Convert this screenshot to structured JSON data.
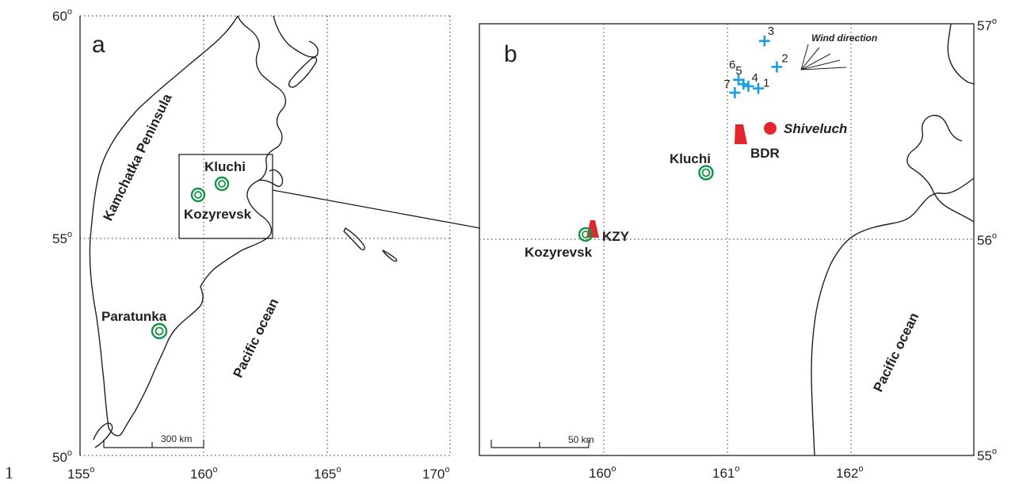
{
  "corner_label": "1",
  "panel_a": {
    "letter": "a",
    "x_ticks": [
      {
        "value": "155",
        "lon": 155
      },
      {
        "value": "160",
        "lon": 160
      },
      {
        "value": "165",
        "lon": 165
      },
      {
        "value": "170",
        "lon": 170
      }
    ],
    "y_ticks": [
      {
        "value": "60",
        "lat": 60
      },
      {
        "value": "55",
        "lat": 55
      },
      {
        "value": "50",
        "lat": 50
      }
    ],
    "region_labels": {
      "peninsula": "Kamchatka Peninsula",
      "ocean": "Pacific ocean"
    },
    "stations": [
      {
        "name": "Kluchi",
        "lon": 160.8,
        "lat": 56.3
      },
      {
        "name": "Kozyrevsk",
        "lon": 159.9,
        "lat": 56.1
      },
      {
        "name": "Paratunka",
        "lon": 158.2,
        "lat": 53.0
      }
    ],
    "scale_bar": {
      "label": "300 km"
    }
  },
  "panel_b": {
    "letter": "b",
    "x_ticks": [
      {
        "value": "160",
        "lon": 160
      },
      {
        "value": "161",
        "lon": 161
      },
      {
        "value": "162",
        "lon": 162
      }
    ],
    "y_ticks": [
      {
        "value": "57",
        "lat": 57
      },
      {
        "value": "56",
        "lat": 56
      },
      {
        "value": "55",
        "lat": 55
      }
    ],
    "ocean_label": "Pacific ocean",
    "volcano": {
      "name": "Shiveluch",
      "lon": 161.36,
      "lat": 56.64,
      "color": "#e3262d"
    },
    "seismic_stations": [
      {
        "code": "BDR",
        "lon": 161.1,
        "lat": 56.59,
        "color": "#e3262d"
      },
      {
        "code": "KZY",
        "lon": 159.9,
        "lat": 56.05,
        "color": "#e3262d"
      }
    ],
    "settlements": [
      {
        "name": "Kluchi",
        "lon": 160.8,
        "lat": 56.32
      },
      {
        "name": "Kozyrevsk",
        "lon": 159.85,
        "lat": 56.02
      }
    ],
    "observation_points": [
      {
        "label": "1",
        "lon": 161.25,
        "lat": 56.7
      },
      {
        "label": "2",
        "lon": 161.4,
        "lat": 56.8
      },
      {
        "label": "3",
        "lon": 161.3,
        "lat": 56.92
      },
      {
        "label": "4",
        "lon": 161.17,
        "lat": 56.71
      },
      {
        "label": "5",
        "lon": 161.13,
        "lat": 56.72
      },
      {
        "label": "6",
        "lon": 161.09,
        "lat": 56.74
      },
      {
        "label": "7",
        "lon": 161.06,
        "lat": 56.68
      }
    ],
    "point_color": "#1b9ee0",
    "station_ring_color": "#139447",
    "wind_label": "Wind direction",
    "scale_bar": {
      "label": "50 km"
    }
  }
}
